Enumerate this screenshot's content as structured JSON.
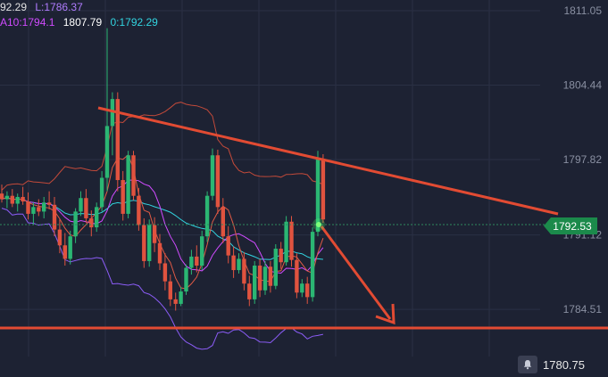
{
  "legend": {
    "ma5": {
      "text": "92.29",
      "color": "#e3e3e3"
    },
    "low": {
      "text": "L:1786.37",
      "color": "#b07cff"
    },
    "ma10": {
      "text": "A10:1794.1",
      "color": "#d04bff"
    },
    "ma20": {
      "text": "1807.79",
      "color": "#ffffff"
    },
    "ma30": {
      "text": "0:1792.29",
      "color": "#32d4e0"
    }
  },
  "current_price_tag": "1792.53",
  "bottom_price": "1780.75",
  "icons": {
    "alert": "bell-icon"
  },
  "colors": {
    "background": "#1d2233",
    "up": "#2bb673",
    "down": "#e0533f",
    "trendline": "#e24b33",
    "grid": "#2a3044",
    "axis_text": "#8a90a2"
  },
  "chart_data": {
    "type": "candlestick",
    "y_ticks": [
      "1811.05",
      "1804.44",
      "1797.82",
      "1791.12",
      "1784.51"
    ],
    "ylim": [
      1778.5,
      1812.0
    ],
    "grid": true,
    "candles": [
      [
        1794.8,
        1795.6,
        1794.0,
        1794.3
      ],
      [
        1794.3,
        1795.0,
        1793.5,
        1794.6
      ],
      [
        1794.6,
        1795.2,
        1793.6,
        1793.9
      ],
      [
        1793.9,
        1794.8,
        1793.2,
        1794.5
      ],
      [
        1794.5,
        1795.4,
        1793.8,
        1794.1
      ],
      [
        1794.1,
        1794.9,
        1792.5,
        1793.0
      ],
      [
        1793.0,
        1794.0,
        1792.0,
        1793.6
      ],
      [
        1793.6,
        1794.3,
        1792.8,
        1793.2
      ],
      [
        1793.2,
        1794.5,
        1792.6,
        1794.0
      ],
      [
        1794.0,
        1795.0,
        1793.4,
        1793.8
      ],
      [
        1793.8,
        1794.5,
        1791.0,
        1791.6
      ],
      [
        1791.6,
        1792.5,
        1789.5,
        1790.2
      ],
      [
        1790.2,
        1791.3,
        1788.4,
        1789.0
      ],
      [
        1789.0,
        1791.5,
        1788.5,
        1791.0
      ],
      [
        1791.0,
        1793.5,
        1790.4,
        1793.2
      ],
      [
        1793.2,
        1795.0,
        1792.8,
        1794.4
      ],
      [
        1794.4,
        1795.2,
        1792.2,
        1792.6
      ],
      [
        1792.6,
        1793.3,
        1791.0,
        1791.8
      ],
      [
        1791.8,
        1794.0,
        1791.4,
        1793.6
      ],
      [
        1793.6,
        1796.8,
        1793.2,
        1796.2
      ],
      [
        1796.2,
        1809.5,
        1795.0,
        1800.8
      ],
      [
        1800.8,
        1803.8,
        1798.2,
        1803.2
      ],
      [
        1803.2,
        1803.8,
        1795.0,
        1796.0
      ],
      [
        1796.0,
        1796.8,
        1792.4,
        1793.0
      ],
      [
        1793.0,
        1798.6,
        1792.6,
        1798.2
      ],
      [
        1798.2,
        1798.6,
        1794.2,
        1794.6
      ],
      [
        1794.6,
        1795.3,
        1791.5,
        1792.0
      ],
      [
        1792.0,
        1792.6,
        1788.2,
        1788.8
      ],
      [
        1788.8,
        1792.5,
        1788.3,
        1792.0
      ],
      [
        1792.0,
        1792.7,
        1789.6,
        1790.4
      ],
      [
        1790.4,
        1791.2,
        1788.0,
        1788.6
      ],
      [
        1788.6,
        1789.5,
        1786.2,
        1787.0
      ],
      [
        1787.0,
        1787.6,
        1784.8,
        1785.4
      ],
      [
        1785.4,
        1786.0,
        1784.4,
        1785.0
      ],
      [
        1785.0,
        1786.5,
        1784.8,
        1786.1
      ],
      [
        1786.1,
        1788.5,
        1785.8,
        1788.2
      ],
      [
        1788.2,
        1789.8,
        1787.6,
        1789.2
      ],
      [
        1789.2,
        1790.2,
        1787.8,
        1788.4
      ],
      [
        1788.4,
        1791.5,
        1788.0,
        1791.0
      ],
      [
        1791.0,
        1795.0,
        1790.5,
        1794.6
      ],
      [
        1794.6,
        1798.8,
        1794.2,
        1798.2
      ],
      [
        1798.2,
        1798.7,
        1793.0,
        1793.6
      ],
      [
        1793.6,
        1794.4,
        1790.4,
        1791.0
      ],
      [
        1791.0,
        1791.9,
        1788.6,
        1789.3
      ],
      [
        1789.3,
        1790.1,
        1787.3,
        1788.0
      ],
      [
        1788.0,
        1789.5,
        1787.7,
        1789.0
      ],
      [
        1789.0,
        1789.6,
        1786.2,
        1786.8
      ],
      [
        1786.8,
        1787.5,
        1784.8,
        1785.4
      ],
      [
        1785.4,
        1788.8,
        1785.0,
        1788.4
      ],
      [
        1788.4,
        1789.0,
        1785.6,
        1786.2
      ],
      [
        1786.2,
        1788.8,
        1785.8,
        1788.3
      ],
      [
        1788.3,
        1788.8,
        1786.0,
        1786.6
      ],
      [
        1786.6,
        1790.3,
        1786.3,
        1789.9
      ],
      [
        1789.9,
        1790.5,
        1788.1,
        1788.7
      ],
      [
        1788.7,
        1792.8,
        1788.4,
        1792.3
      ],
      [
        1792.3,
        1792.8,
        1788.3,
        1788.9
      ],
      [
        1788.9,
        1789.5,
        1785.5,
        1786.0
      ],
      [
        1786.0,
        1787.2,
        1785.6,
        1786.8
      ],
      [
        1786.8,
        1787.4,
        1785.0,
        1785.6
      ],
      [
        1785.6,
        1791.8,
        1785.2,
        1791.4
      ],
      [
        1791.4,
        1798.6,
        1791.0,
        1797.9
      ],
      [
        1797.9,
        1798.3,
        1792.2,
        1792.5
      ]
    ]
  }
}
